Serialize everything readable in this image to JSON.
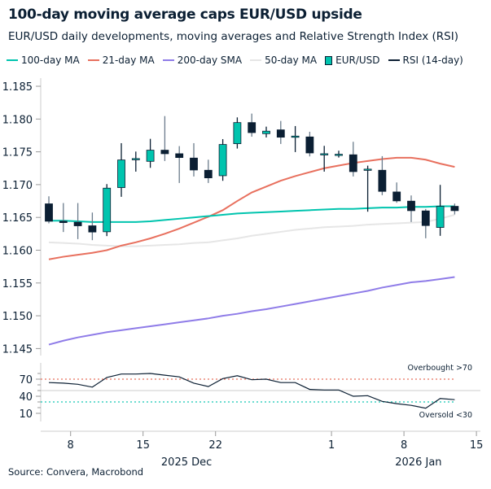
{
  "title": "100-day moving average caps EUR/USD upside",
  "subtitle": "EUR/USD daily developments, moving averages and Relative Strength Index (RSI)",
  "source": "Source: Convera, Macrobond",
  "legend": [
    {
      "label": "100-day MA",
      "color": "#00c4ae",
      "kind": "line"
    },
    {
      "label": "21-day MA",
      "color": "#e8705e",
      "kind": "line"
    },
    {
      "label": "200-day SMA",
      "color": "#8f7ce8",
      "kind": "line"
    },
    {
      "label": "50-day MA",
      "color": "#e6e6e6",
      "kind": "line"
    },
    {
      "label": "EUR/USD",
      "color": "#00c4ae",
      "kind": "candle"
    },
    {
      "label": "RSI (14-day)",
      "color": "#0b1f33",
      "kind": "line"
    }
  ],
  "chart_data": [
    {
      "type": "candlestick",
      "dates": [
        "2025-12-04",
        "2025-12-05",
        "2025-12-08",
        "2025-12-09",
        "2025-12-10",
        "2025-12-11",
        "2025-12-12",
        "2025-12-15",
        "2025-12-16",
        "2025-12-17",
        "2025-12-18",
        "2025-12-19",
        "2025-12-22",
        "2025-12-23",
        "2025-12-24",
        "2025-12-25",
        "2025-12-26",
        "2025-12-29",
        "2025-12-30",
        "2025-12-31",
        "2026-01-01",
        "2026-01-02",
        "2026-01-05",
        "2026-01-06",
        "2026-01-07",
        "2026-01-08",
        "2026-01-09",
        "2026-01-12",
        "2026-01-13"
      ],
      "open": [
        1.16707,
        1.16442,
        1.16426,
        1.16372,
        1.16281,
        1.16955,
        1.17393,
        1.17355,
        1.17525,
        1.17471,
        1.17405,
        1.17219,
        1.17136,
        1.17624,
        1.17946,
        1.17777,
        1.17835,
        1.1774,
        1.17727,
        1.17471,
        1.17463,
        1.17455,
        1.17236,
        1.17219,
        1.16888,
        1.16748,
        1.16599,
        1.16347,
        1.16669
      ],
      "high": [
        1.16822,
        1.16719,
        1.16719,
        1.16574,
        1.17008,
        1.17632,
        1.17504,
        1.17698,
        1.18045,
        1.17587,
        1.17632,
        1.1738,
        1.17694,
        1.18025,
        1.18083,
        1.17884,
        1.17971,
        1.17893,
        1.17806,
        1.17591,
        1.17517,
        1.17653,
        1.17289,
        1.17434,
        1.17033,
        1.16835,
        1.16628,
        1.16996,
        1.16711
      ],
      "low": [
        1.16409,
        1.16277,
        1.16169,
        1.16153,
        1.16215,
        1.16814,
        1.17198,
        1.17256,
        1.1736,
        1.17025,
        1.17124,
        1.17025,
        1.17058,
        1.1755,
        1.17731,
        1.17719,
        1.1762,
        1.17496,
        1.1743,
        1.17198,
        1.17413,
        1.17124,
        1.16587,
        1.16839,
        1.16723,
        1.1643,
        1.16182,
        1.16219,
        1.16545
      ],
      "close": [
        1.16442,
        1.16421,
        1.16372,
        1.16277,
        1.16946,
        1.17376,
        1.17397,
        1.17525,
        1.17471,
        1.17413,
        1.17223,
        1.17103,
        1.17612,
        1.17946,
        1.17793,
        1.17815,
        1.17723,
        1.1774,
        1.17483,
        1.17471,
        1.17463,
        1.17198,
        1.17236,
        1.16897,
        1.16752,
        1.16603,
        1.16376,
        1.16669,
        1.16603
      ],
      "ma100": [
        1.1645,
        1.1645,
        1.1644,
        1.1643,
        1.1643,
        1.1643,
        1.1643,
        1.1644,
        1.1646,
        1.1648,
        1.165,
        1.1652,
        1.1654,
        1.1656,
        1.1657,
        1.1658,
        1.1659,
        1.166,
        1.1661,
        1.1662,
        1.1663,
        1.1663,
        1.1664,
        1.1665,
        1.1665,
        1.1666,
        1.1666,
        1.1667,
        1.1667
      ],
      "ma21": [
        1.1586,
        1.159,
        1.1593,
        1.1596,
        1.16,
        1.1607,
        1.1612,
        1.1618,
        1.1625,
        1.1633,
        1.1642,
        1.1651,
        1.1661,
        1.1675,
        1.1688,
        1.1697,
        1.1706,
        1.1713,
        1.1719,
        1.1725,
        1.1729,
        1.1733,
        1.1736,
        1.1739,
        1.1741,
        1.1741,
        1.1738,
        1.1732,
        1.1727
      ],
      "ma50": [
        1.1612,
        1.1611,
        1.161,
        1.1608,
        1.1607,
        1.1606,
        1.1606,
        1.1607,
        1.1608,
        1.1609,
        1.1611,
        1.1612,
        1.1615,
        1.1618,
        1.1622,
        1.1625,
        1.1628,
        1.1631,
        1.1633,
        1.1635,
        1.1636,
        1.1637,
        1.1639,
        1.164,
        1.1641,
        1.1642,
        1.1643,
        1.1648,
        1.1654
      ],
      "sma200": [
        1.1456,
        1.1462,
        1.1467,
        1.1471,
        1.1475,
        1.1478,
        1.1481,
        1.1484,
        1.1487,
        1.149,
        1.1493,
        1.1496,
        1.15,
        1.1503,
        1.1507,
        1.151,
        1.1514,
        1.1518,
        1.1522,
        1.1526,
        1.153,
        1.1534,
        1.1538,
        1.1543,
        1.1547,
        1.1551,
        1.1553,
        1.1556,
        1.1559
      ],
      "ylim": [
        1.1425,
        1.186
      ],
      "yticks": [
        "1.185",
        "1.180",
        "1.175",
        "1.170",
        "1.165",
        "1.160",
        "1.155",
        "1.150",
        "1.145"
      ]
    },
    {
      "type": "line",
      "name": "RSI (14-day)",
      "values": [
        64,
        63,
        61,
        56,
        73,
        79,
        79,
        80,
        77,
        74,
        63,
        57,
        71,
        76,
        69,
        70,
        64,
        64,
        52,
        51,
        51,
        40,
        41,
        31,
        27,
        24,
        19,
        36,
        34
      ],
      "yticks": [
        "70",
        "40",
        "10"
      ],
      "overbought": {
        "level": 70,
        "label": "Overbought >70"
      },
      "oversold": {
        "level": 30,
        "label": "Oversold <30"
      },
      "midline": 50
    }
  ],
  "xaxis": {
    "ticks": [
      {
        "label": "8",
        "index": 2
      },
      {
        "label": "15",
        "index": 7
      },
      {
        "label": "22",
        "index": 12
      },
      {
        "label": "1",
        "index": 20
      },
      {
        "label": "8",
        "index": 25
      },
      {
        "label": "15",
        "index": 30
      }
    ],
    "months": [
      {
        "label": "2025 Dec",
        "index": 9.5
      },
      {
        "label": "2026 Jan",
        "index": 25.5
      }
    ]
  }
}
